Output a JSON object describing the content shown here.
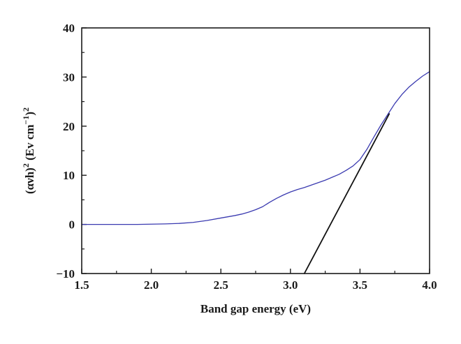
{
  "chart_data": {
    "type": "line",
    "title": "",
    "xlabel": "Band gap energy (eV)",
    "ylabel": {
      "parts": [
        "(ανh)",
        "2",
        " (Ev cm",
        "−1",
        ")",
        "2"
      ]
    },
    "xlim": [
      1.5,
      4.0
    ],
    "ylim": [
      -10,
      40
    ],
    "x_ticks": [
      1.5,
      2.0,
      2.5,
      3.0,
      3.5,
      4.0
    ],
    "x_tick_labels": [
      "1.5",
      "2.0",
      "2.5",
      "3.0",
      "3.5",
      "4.0"
    ],
    "y_ticks": [
      -10,
      0,
      10,
      20,
      30,
      40
    ],
    "y_tick_labels": [
      "−10",
      "0",
      "10",
      "20",
      "30",
      "40"
    ],
    "x_minor_step": 0.25,
    "y_minor_step": 5,
    "grid": false,
    "series": [
      {
        "color": "#3a3ab0",
        "style": "solid",
        "x": [
          1.5,
          1.6,
          1.7,
          1.8,
          1.9,
          2.0,
          2.1,
          2.2,
          2.3,
          2.4,
          2.5,
          2.55,
          2.6,
          2.65,
          2.7,
          2.75,
          2.8,
          2.85,
          2.9,
          2.95,
          3.0,
          3.05,
          3.1,
          3.15,
          3.2,
          3.25,
          3.3,
          3.35,
          3.4,
          3.45,
          3.5,
          3.55,
          3.6,
          3.65,
          3.7,
          3.75,
          3.8,
          3.85,
          3.9,
          3.95,
          4.0
        ],
        "y": [
          0,
          0,
          0,
          0,
          0,
          0.05,
          0.1,
          0.2,
          0.4,
          0.8,
          1.3,
          1.55,
          1.8,
          2.1,
          2.5,
          3.0,
          3.6,
          4.5,
          5.3,
          6.0,
          6.6,
          7.1,
          7.5,
          8.0,
          8.5,
          9.0,
          9.6,
          10.2,
          11.0,
          11.9,
          13.2,
          15.3,
          17.8,
          20.2,
          22.4,
          24.6,
          26.4,
          27.9,
          29.1,
          30.2,
          31.1
        ]
      },
      {
        "color": "#111111",
        "style": "solid",
        "x": [
          3.1,
          3.71
        ],
        "y": [
          -10,
          22.5
        ]
      }
    ]
  }
}
